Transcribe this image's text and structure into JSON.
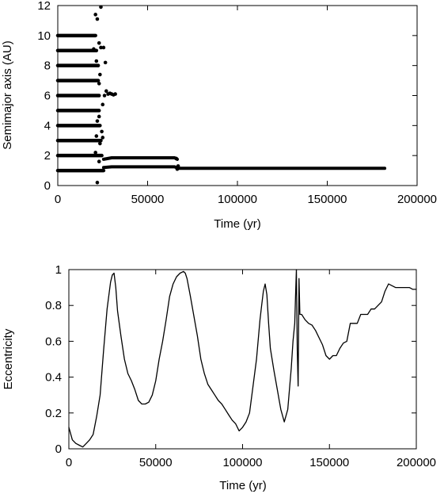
{
  "chart_data": [
    {
      "type": "scatter",
      "title": "",
      "xlabel": "Time (yr)",
      "ylabel": "Semimajor axis (AU)",
      "xlim": [
        0,
        200000
      ],
      "ylim": [
        0,
        12
      ],
      "xticks": [
        "0",
        "50000",
        "100000",
        "150000",
        "200000"
      ],
      "yticks": [
        "0",
        "2",
        "4",
        "6",
        "8",
        "10",
        "12"
      ],
      "grid": false,
      "series": [
        {
          "name": "",
          "kind": "band",
          "y": 10,
          "x": [
            0,
            21000
          ]
        },
        {
          "name": "",
          "kind": "band",
          "y": 9,
          "x": [
            0,
            21500
          ]
        },
        {
          "name": "",
          "kind": "band",
          "y": 8,
          "x": [
            0,
            22000
          ]
        },
        {
          "name": "",
          "kind": "band",
          "y": 7,
          "x": [
            0,
            22500
          ]
        },
        {
          "name": "",
          "kind": "band",
          "y": 6,
          "x": [
            0,
            23000
          ]
        },
        {
          "name": "",
          "kind": "band",
          "y": 5,
          "x": [
            0,
            23000
          ]
        },
        {
          "name": "",
          "kind": "band",
          "y": 4,
          "x": [
            0,
            23500
          ]
        },
        {
          "name": "",
          "kind": "band",
          "y": 3,
          "x": [
            0,
            24000
          ]
        },
        {
          "name": "",
          "kind": "band",
          "y": 2,
          "x": [
            0,
            24500
          ]
        },
        {
          "name": "",
          "kind": "band",
          "y": 1,
          "x": [
            0,
            25500
          ]
        },
        {
          "name": "",
          "kind": "line",
          "x": [
            25500,
            30000,
            40000,
            50000,
            60000,
            65000,
            66500
          ],
          "y": [
            1.75,
            1.85,
            1.85,
            1.85,
            1.85,
            1.85,
            1.75
          ]
        },
        {
          "name": "",
          "kind": "line",
          "x": [
            25500,
            30000,
            50000,
            65000,
            67000,
            100000,
            150000,
            182000
          ],
          "y": [
            1.2,
            1.25,
            1.25,
            1.25,
            1.15,
            1.15,
            1.15,
            1.15
          ]
        },
        {
          "name": "",
          "kind": "points",
          "x": [
            21000,
            22000,
            23000,
            24000,
            20000,
            21500,
            22500,
            23500,
            25500,
            27000,
            28000,
            29000,
            30000,
            31000,
            32000,
            26000,
            26500,
            25000,
            23000,
            22000,
            24500,
            21500,
            22500,
            23500,
            21000,
            23000,
            66000,
            67000,
            66500,
            24000,
            22000,
            25000,
            23000
          ],
          "y": [
            11.4,
            11.1,
            9.5,
            9.2,
            9.1,
            8.3,
            8.0,
            7.4,
            9.2,
            6.3,
            6.1,
            6.15,
            6.1,
            6.05,
            6.1,
            6.0,
            8.2,
            5.4,
            4.6,
            4.3,
            3.6,
            3.3,
            3.0,
            2.8,
            2.2,
            1.6,
            1.8,
            1.3,
            1.1,
            11.9,
            0.2,
            3.2,
            6.8
          ]
        }
      ]
    },
    {
      "type": "line",
      "title": "",
      "xlabel": "Time (yr)",
      "ylabel": "Eccentricity",
      "xlim": [
        0,
        200000
      ],
      "ylim": [
        0,
        1
      ],
      "xticks": [
        "0",
        "50000",
        "100000",
        "150000",
        "200000"
      ],
      "yticks": [
        "0",
        "0.2",
        "0.4",
        "0.6",
        "0.8",
        "1"
      ],
      "grid": false,
      "series": [
        {
          "name": "",
          "x": [
            0,
            2000,
            4000,
            6000,
            8000,
            10000,
            12000,
            14000,
            16000,
            18000,
            20000,
            22000,
            24000,
            25000,
            26000,
            27000,
            28000,
            30000,
            32000,
            34000,
            36000,
            38000,
            40000,
            42000,
            44000,
            46000,
            48000,
            50000,
            52000,
            54000,
            56000,
            58000,
            60000,
            62000,
            64000,
            66000,
            67000,
            68000,
            70000,
            72000,
            74000,
            76000,
            78000,
            80000,
            82000,
            84000,
            86000,
            88000,
            90000,
            92000,
            94000,
            96000,
            98000,
            100000,
            102000,
            104000,
            106000,
            108000,
            110000,
            111000,
            112000,
            113000,
            114000,
            115000,
            116000,
            118000,
            120000,
            122000,
            124000,
            126000,
            128000,
            129000,
            130000,
            130500,
            131000,
            131500,
            132000,
            132500,
            133000,
            134000,
            136000,
            138000,
            140000,
            142000,
            144000,
            146000,
            148000,
            150000,
            152000,
            154000,
            156000,
            158000,
            160000,
            162000,
            164000,
            166000,
            168000,
            170000,
            172000,
            174000,
            176000,
            178000,
            180000,
            182000,
            184000,
            186000,
            188000,
            190000,
            192000,
            194000,
            196000,
            198000,
            200000
          ],
          "y": [
            0.12,
            0.05,
            0.03,
            0.02,
            0.01,
            0.03,
            0.05,
            0.08,
            0.18,
            0.3,
            0.55,
            0.78,
            0.93,
            0.97,
            0.98,
            0.9,
            0.77,
            0.63,
            0.5,
            0.42,
            0.38,
            0.33,
            0.27,
            0.25,
            0.25,
            0.26,
            0.3,
            0.38,
            0.5,
            0.6,
            0.72,
            0.85,
            0.92,
            0.96,
            0.98,
            0.99,
            0.98,
            0.95,
            0.85,
            0.74,
            0.63,
            0.5,
            0.42,
            0.36,
            0.33,
            0.3,
            0.27,
            0.25,
            0.22,
            0.19,
            0.16,
            0.14,
            0.1,
            0.12,
            0.15,
            0.2,
            0.35,
            0.5,
            0.72,
            0.8,
            0.88,
            0.92,
            0.86,
            0.7,
            0.56,
            0.44,
            0.33,
            0.22,
            0.15,
            0.22,
            0.45,
            0.6,
            0.7,
            0.85,
            1.0,
            0.55,
            0.35,
            0.95,
            0.75,
            0.75,
            0.72,
            0.7,
            0.69,
            0.66,
            0.62,
            0.58,
            0.52,
            0.5,
            0.52,
            0.52,
            0.56,
            0.59,
            0.6,
            0.7,
            0.7,
            0.7,
            0.75,
            0.75,
            0.75,
            0.78,
            0.78,
            0.8,
            0.82,
            0.88,
            0.92,
            0.91,
            0.9,
            0.9,
            0.9,
            0.9,
            0.9,
            0.89,
            0.89
          ]
        }
      ]
    }
  ]
}
